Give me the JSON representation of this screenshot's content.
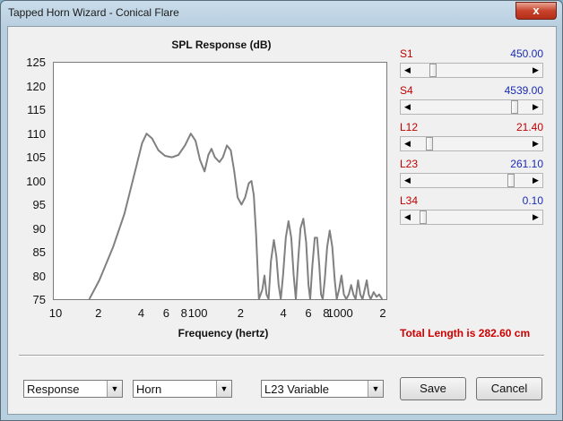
{
  "window": {
    "title": "Tapped Horn Wizard - Conical Flare",
    "close_glyph": "x"
  },
  "chart": {
    "title": "SPL Response (dB)",
    "x_axis_title": "Frequency (hertz)",
    "y_ticks": [
      "125",
      "120",
      "115",
      "110",
      "105",
      "100",
      "95",
      "90",
      "85",
      "80",
      "75"
    ],
    "x_ticks": [
      "10",
      "2",
      "4",
      "6",
      "8",
      "100",
      "2",
      "4",
      "6",
      "8",
      "1000",
      "2"
    ]
  },
  "chart_data": {
    "type": "line",
    "title": "SPL Response (dB)",
    "xlabel": "Frequency (hertz)",
    "ylabel": "",
    "xscale": "log",
    "xlim": [
      10,
      2000
    ],
    "ylim": [
      75,
      125
    ],
    "grid": false,
    "series": [
      {
        "points": [
          [
            17,
            75
          ],
          [
            20,
            79
          ],
          [
            25,
            86
          ],
          [
            30,
            93
          ],
          [
            35,
            101
          ],
          [
            40,
            108
          ],
          [
            43,
            110
          ],
          [
            47,
            109
          ],
          [
            52,
            106.5
          ],
          [
            58,
            105.3
          ],
          [
            65,
            105
          ],
          [
            72,
            105.5
          ],
          [
            80,
            107.5
          ],
          [
            88,
            110
          ],
          [
            95,
            108.5
          ],
          [
            102,
            104.5
          ],
          [
            110,
            102
          ],
          [
            117,
            105.5
          ],
          [
            123,
            106.8
          ],
          [
            130,
            105
          ],
          [
            140,
            104
          ],
          [
            148,
            105
          ],
          [
            158,
            107.5
          ],
          [
            168,
            106.5
          ],
          [
            178,
            102
          ],
          [
            188,
            96.5
          ],
          [
            200,
            95
          ],
          [
            212,
            96.5
          ],
          [
            225,
            99.5
          ],
          [
            235,
            100
          ],
          [
            244,
            97
          ],
          [
            253,
            89
          ],
          [
            265,
            75
          ],
          [
            280,
            77
          ],
          [
            290,
            80
          ],
          [
            300,
            76
          ],
          [
            310,
            75
          ],
          [
            322,
            83
          ],
          [
            338,
            87.5
          ],
          [
            352,
            84
          ],
          [
            365,
            78
          ],
          [
            378,
            75
          ],
          [
            392,
            80
          ],
          [
            410,
            88
          ],
          [
            428,
            91.5
          ],
          [
            448,
            88
          ],
          [
            466,
            80
          ],
          [
            482,
            75
          ],
          [
            500,
            83
          ],
          [
            520,
            90
          ],
          [
            545,
            92
          ],
          [
            570,
            87
          ],
          [
            592,
            78
          ],
          [
            608,
            75
          ],
          [
            630,
            82
          ],
          [
            655,
            88
          ],
          [
            680,
            88
          ],
          [
            705,
            82
          ],
          [
            725,
            76
          ],
          [
            745,
            75
          ],
          [
            770,
            79
          ],
          [
            800,
            86
          ],
          [
            835,
            89.5
          ],
          [
            870,
            86
          ],
          [
            905,
            79
          ],
          [
            935,
            75
          ],
          [
            970,
            77
          ],
          [
            1010,
            80
          ],
          [
            1050,
            76
          ],
          [
            1090,
            75
          ],
          [
            1135,
            76
          ],
          [
            1180,
            78
          ],
          [
            1225,
            76
          ],
          [
            1270,
            75
          ],
          [
            1320,
            79
          ],
          [
            1370,
            76
          ],
          [
            1420,
            75
          ],
          [
            1470,
            77
          ],
          [
            1520,
            79
          ],
          [
            1570,
            76
          ],
          [
            1620,
            75
          ],
          [
            1700,
            76.5
          ],
          [
            1780,
            75.5
          ],
          [
            1860,
            76
          ],
          [
            1950,
            75
          ]
        ]
      }
    ]
  },
  "sliders": [
    {
      "label": "S1",
      "value": "450.00",
      "value_color": "blue",
      "position": 0.14
    },
    {
      "label": "S4",
      "value": "4539.00",
      "value_color": "blue",
      "position": 0.9
    },
    {
      "label": "L12",
      "value": "21.40",
      "value_color": "red",
      "position": 0.11
    },
    {
      "label": "L23",
      "value": "261.10",
      "value_color": "blue",
      "position": 0.87
    },
    {
      "label": "L34",
      "value": "0.10",
      "value_color": "blue",
      "position": 0.05
    }
  ],
  "total_length": "Total Length is 282.60 cm",
  "bottom": {
    "view_select": "Response",
    "type_select": "Horn",
    "variable_select": "L23 Variable",
    "save_label": "Save",
    "cancel_label": "Cancel"
  },
  "colors": {
    "slider_label": "#c00000",
    "slider_value_blue": "#1a2bb5",
    "curve": "#808080",
    "total_length": "#d00000"
  }
}
